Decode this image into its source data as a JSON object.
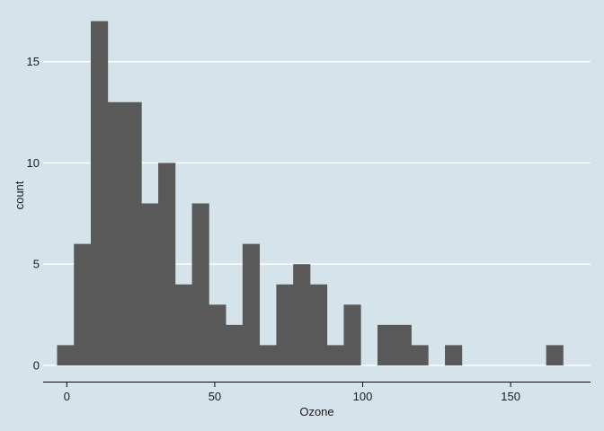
{
  "chart_data": {
    "type": "bar",
    "title": "",
    "xlabel": "Ozone",
    "ylabel": "count",
    "xlim": [
      -8,
      177
    ],
    "ylim": [
      -0.8,
      17.6
    ],
    "x_ticks": [
      0,
      50,
      100,
      150
    ],
    "y_ticks": [
      0,
      5,
      10,
      15
    ],
    "bin_width": 5.7,
    "bins": [
      {
        "x0": -3.3,
        "x1": 2.4,
        "count": 1
      },
      {
        "x0": 2.4,
        "x1": 8.1,
        "count": 6
      },
      {
        "x0": 8.1,
        "x1": 13.8,
        "count": 17
      },
      {
        "x0": 13.8,
        "x1": 19.5,
        "count": 13
      },
      {
        "x0": 19.5,
        "x1": 25.2,
        "count": 13
      },
      {
        "x0": 25.2,
        "x1": 30.9,
        "count": 8
      },
      {
        "x0": 30.9,
        "x1": 36.6,
        "count": 10
      },
      {
        "x0": 36.6,
        "x1": 42.3,
        "count": 4
      },
      {
        "x0": 42.3,
        "x1": 48.0,
        "count": 8
      },
      {
        "x0": 48.0,
        "x1": 53.7,
        "count": 3
      },
      {
        "x0": 53.7,
        "x1": 59.4,
        "count": 2
      },
      {
        "x0": 59.4,
        "x1": 65.1,
        "count": 6
      },
      {
        "x0": 65.1,
        "x1": 70.8,
        "count": 1
      },
      {
        "x0": 70.8,
        "x1": 76.5,
        "count": 4
      },
      {
        "x0": 76.5,
        "x1": 82.2,
        "count": 5
      },
      {
        "x0": 82.2,
        "x1": 87.9,
        "count": 4
      },
      {
        "x0": 87.9,
        "x1": 93.6,
        "count": 1
      },
      {
        "x0": 93.6,
        "x1": 99.3,
        "count": 3
      },
      {
        "x0": 99.3,
        "x1": 105.0,
        "count": 0
      },
      {
        "x0": 105.0,
        "x1": 110.7,
        "count": 2
      },
      {
        "x0": 110.7,
        "x1": 116.4,
        "count": 2
      },
      {
        "x0": 116.4,
        "x1": 122.1,
        "count": 1
      },
      {
        "x0": 122.1,
        "x1": 127.8,
        "count": 0
      },
      {
        "x0": 127.8,
        "x1": 133.5,
        "count": 1
      },
      {
        "x0": 133.5,
        "x1": 139.2,
        "count": 0
      },
      {
        "x0": 139.2,
        "x1": 144.9,
        "count": 0
      },
      {
        "x0": 144.9,
        "x1": 150.6,
        "count": 0
      },
      {
        "x0": 150.6,
        "x1": 156.3,
        "count": 0
      },
      {
        "x0": 156.3,
        "x1": 162.0,
        "count": 0
      },
      {
        "x0": 162.0,
        "x1": 167.7,
        "count": 1
      }
    ],
    "grid": "horizontal",
    "legend": "none",
    "colors": {
      "background": "#d5e4eb",
      "bar_fill": "#595959",
      "gridline": "#ffffff",
      "axis_line": "#000000",
      "text": "#1a1a1a"
    }
  }
}
